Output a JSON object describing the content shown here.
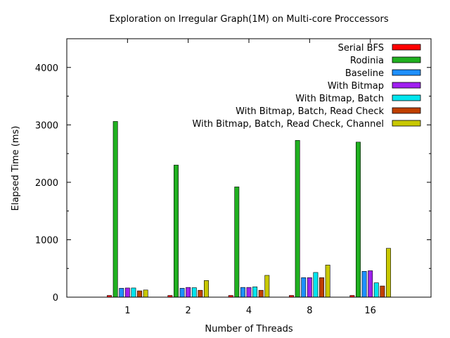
{
  "chart_data": {
    "type": "bar",
    "title": "Exploration on Irregular Graph(1M) on Multi-core Proccessors",
    "xlabel": "Number of Threads",
    "ylabel": "Elapsed Time (ms)",
    "categories": [
      "1",
      "2",
      "4",
      "8",
      "16"
    ],
    "ylim": [
      0,
      4500
    ],
    "yticks": [
      0,
      1000,
      2000,
      3000,
      4000
    ],
    "legend_position": "top-right",
    "grid": false,
    "series": [
      {
        "name": "Serial BFS",
        "color": "#ff0000",
        "values": [
          30,
          30,
          30,
          30,
          30
        ]
      },
      {
        "name": "Rodinia",
        "color": "#20b020",
        "values": [
          3060,
          2300,
          1920,
          2730,
          2700
        ]
      },
      {
        "name": "Baseline",
        "color": "#1e90ff",
        "values": [
          155,
          155,
          170,
          340,
          450
        ]
      },
      {
        "name": "With Bitmap",
        "color": "#a020f0",
        "values": [
          160,
          170,
          170,
          340,
          460
        ]
      },
      {
        "name": "With Bitmap, Batch",
        "color": "#00e5ee",
        "values": [
          160,
          165,
          180,
          430,
          250
        ]
      },
      {
        "name": "With Bitmap, Batch, Read Check",
        "color": "#c04000",
        "values": [
          110,
          120,
          120,
          340,
          195
        ]
      },
      {
        "name": "With Bitmap, Batch, Read Check, Channel",
        "color": "#c8c800",
        "values": [
          125,
          290,
          380,
          560,
          850
        ]
      }
    ]
  }
}
